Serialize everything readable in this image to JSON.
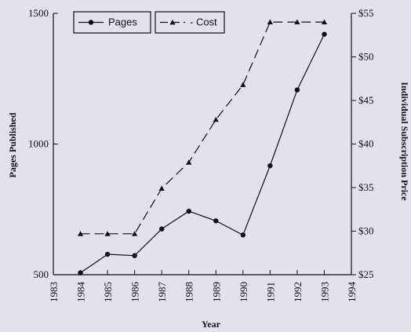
{
  "chart_data": {
    "type": "line",
    "title": "",
    "xlabel": "Year",
    "ylabel_left": "Pages Published",
    "ylabel_right": "Individual Subscription Price",
    "x_ticks": [
      "1983",
      "1984",
      "1985",
      "1986",
      "1987",
      "1988",
      "1989",
      "1990",
      "1991",
      "1992",
      "1993",
      "1994"
    ],
    "xlim": [
      1983,
      1994
    ],
    "y_left_ticks": [
      "500",
      "1000",
      "1500"
    ],
    "y_left_lim": [
      500,
      1500
    ],
    "y_right_ticks": [
      "$25",
      "$30",
      "$35",
      "$40",
      "$45",
      "$50",
      "$55"
    ],
    "y_right_lim": [
      25,
      55
    ],
    "grid": false,
    "legend_position": "top-left",
    "series": [
      {
        "name": "Pages",
        "axis": "left",
        "style": "solid",
        "marker": "circle",
        "x": [
          1984,
          1985,
          1986,
          1987,
          1988,
          1989,
          1990,
          1991,
          1992,
          1993
        ],
        "values": [
          507,
          578,
          573,
          675,
          743,
          706,
          652,
          917,
          1207,
          1420
        ]
      },
      {
        "name": "- Cost",
        "axis": "right",
        "style": "dashed",
        "marker": "triangle",
        "x": [
          1984,
          1985,
          1986,
          1987,
          1988,
          1989,
          1990,
          1991,
          1992,
          1993
        ],
        "values": [
          29.7,
          29.7,
          29.7,
          34.9,
          37.9,
          42.8,
          46.8,
          54.0,
          54.0,
          54.0
        ]
      }
    ]
  }
}
